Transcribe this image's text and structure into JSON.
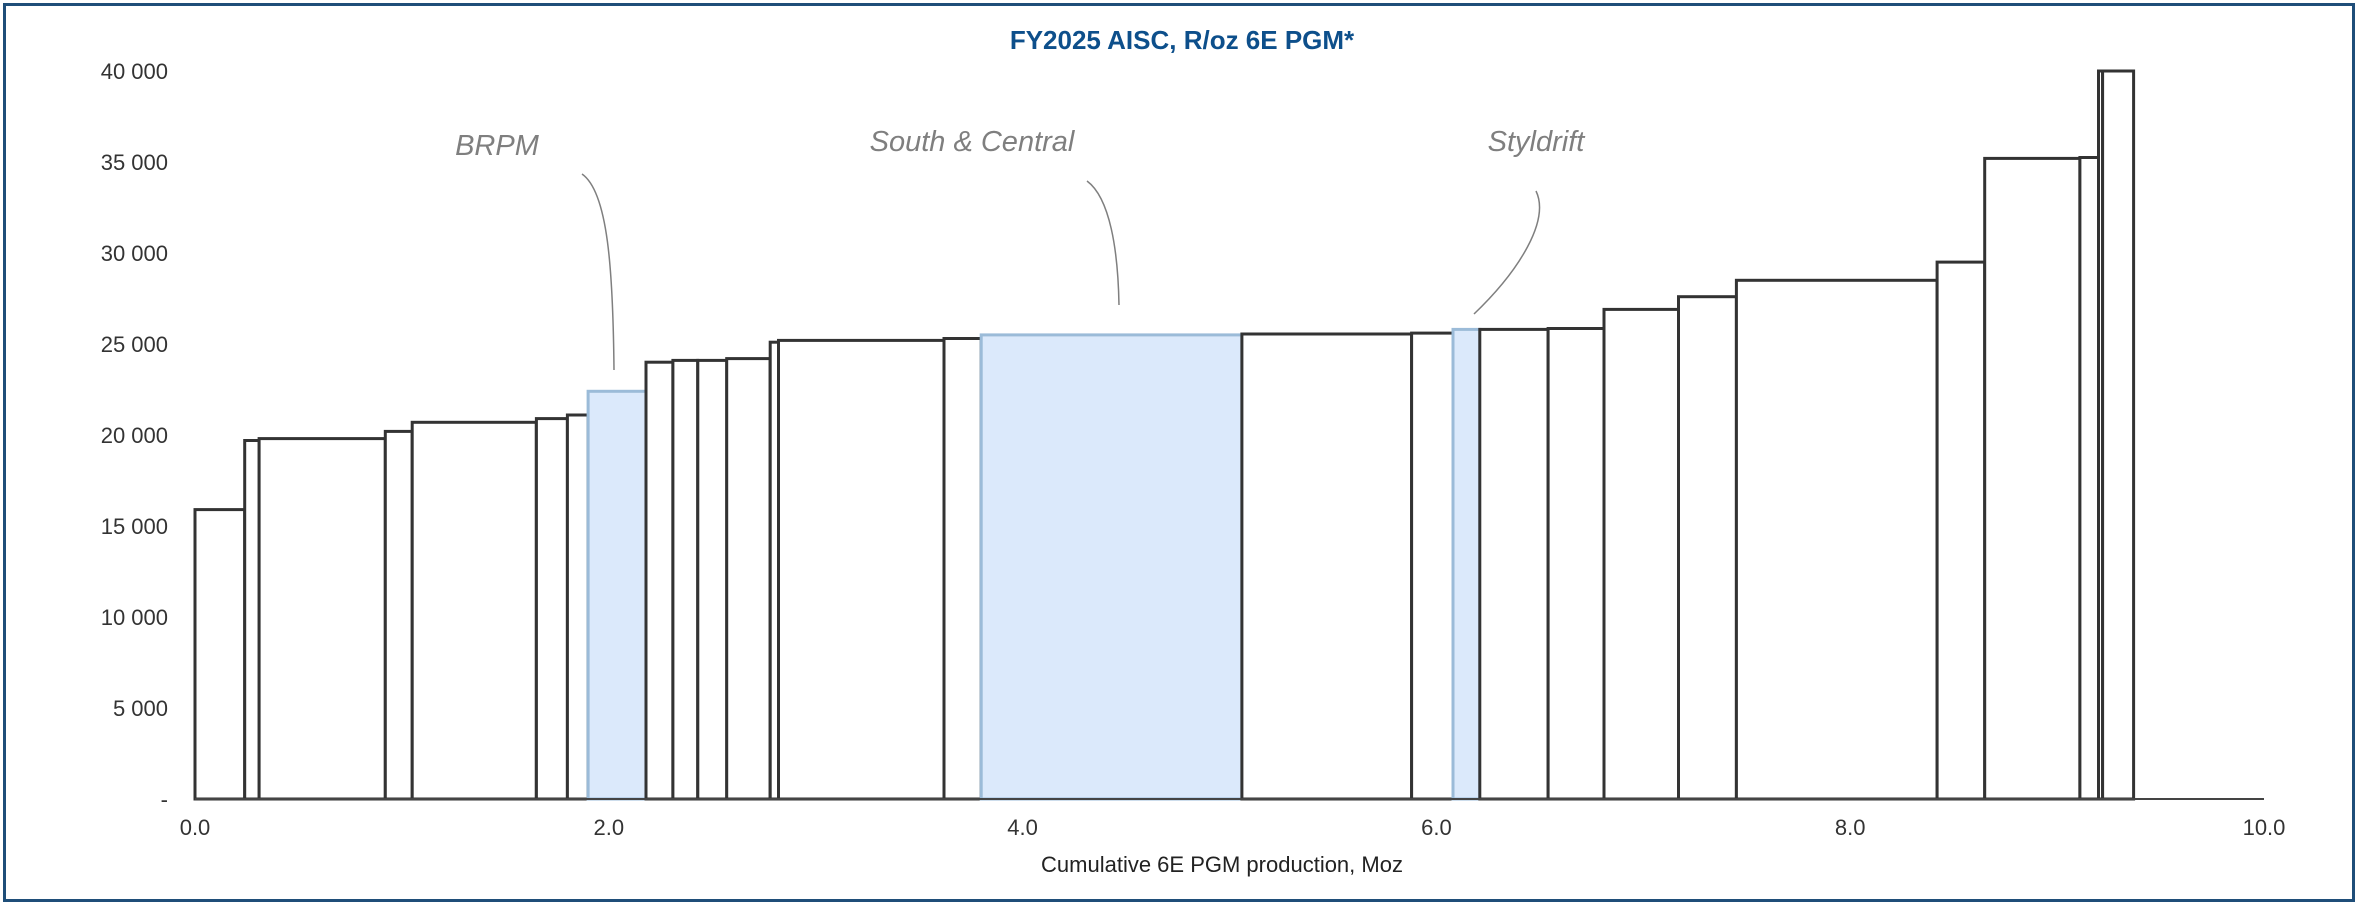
{
  "chart_data": {
    "type": "bar",
    "subtype": "cost-curve (variable-width bars)",
    "title": "FY2025 AISC, R/oz 6E PGM*",
    "xlabel": "Cumulative 6E PGM production, Moz",
    "ylabel": "",
    "xlim": [
      0,
      10
    ],
    "ylim": [
      0,
      40000
    ],
    "x_ticks": [
      "0.0",
      "2.0",
      "4.0",
      "6.0",
      "8.0",
      "10.0"
    ],
    "y_ticks": [
      "-",
      "5 000",
      "10 000",
      "15 000",
      "20 000",
      "25 000",
      "30 000",
      "35 000",
      "40 000"
    ],
    "grid": false,
    "legend": "none",
    "colors": {
      "bar_outline": "#333333",
      "highlight_fill": "#dbe9fb",
      "highlight_outline": "#9bbbd8",
      "title": "#0d4f8b",
      "frame": "#1f4e79"
    },
    "bars": [
      {
        "x_start": 0.0,
        "x_end": 0.24,
        "value": 15900,
        "highlight": false
      },
      {
        "x_start": 0.24,
        "x_end": 0.31,
        "value": 19700,
        "highlight": false
      },
      {
        "x_start": 0.31,
        "x_end": 0.92,
        "value": 19800,
        "highlight": false
      },
      {
        "x_start": 0.92,
        "x_end": 1.05,
        "value": 20200,
        "highlight": false
      },
      {
        "x_start": 1.05,
        "x_end": 1.65,
        "value": 20700,
        "highlight": false
      },
      {
        "x_start": 1.65,
        "x_end": 1.8,
        "value": 20900,
        "highlight": false
      },
      {
        "x_start": 1.8,
        "x_end": 1.9,
        "value": 21100,
        "highlight": false
      },
      {
        "x_start": 1.9,
        "x_end": 2.18,
        "value": 22400,
        "highlight": true,
        "label": "BRPM"
      },
      {
        "x_start": 2.18,
        "x_end": 2.31,
        "value": 24000,
        "highlight": false
      },
      {
        "x_start": 2.31,
        "x_end": 2.43,
        "value": 24100,
        "highlight": false
      },
      {
        "x_start": 2.43,
        "x_end": 2.57,
        "value": 24100,
        "highlight": false
      },
      {
        "x_start": 2.57,
        "x_end": 2.78,
        "value": 24200,
        "highlight": false
      },
      {
        "x_start": 2.78,
        "x_end": 2.82,
        "value": 25100,
        "highlight": false
      },
      {
        "x_start": 2.82,
        "x_end": 3.62,
        "value": 25200,
        "highlight": false
      },
      {
        "x_start": 3.62,
        "x_end": 3.8,
        "value": 25300,
        "highlight": false
      },
      {
        "x_start": 3.8,
        "x_end": 5.06,
        "value": 25500,
        "highlight": true,
        "label": "South & Central"
      },
      {
        "x_start": 5.06,
        "x_end": 5.88,
        "value": 25550,
        "highlight": false
      },
      {
        "x_start": 5.88,
        "x_end": 6.08,
        "value": 25600,
        "highlight": false
      },
      {
        "x_start": 6.08,
        "x_end": 6.21,
        "value": 25800,
        "highlight": true,
        "label": "Styldrift"
      },
      {
        "x_start": 6.21,
        "x_end": 6.54,
        "value": 25800,
        "highlight": false
      },
      {
        "x_start": 6.54,
        "x_end": 6.81,
        "value": 25850,
        "highlight": false
      },
      {
        "x_start": 6.81,
        "x_end": 7.17,
        "value": 26900,
        "highlight": false
      },
      {
        "x_start": 7.17,
        "x_end": 7.45,
        "value": 27600,
        "highlight": false
      },
      {
        "x_start": 7.45,
        "x_end": 8.42,
        "value": 28500,
        "highlight": false
      },
      {
        "x_start": 8.42,
        "x_end": 8.65,
        "value": 29500,
        "highlight": false
      },
      {
        "x_start": 8.65,
        "x_end": 9.11,
        "value": 35200,
        "highlight": false
      },
      {
        "x_start": 9.11,
        "x_end": 9.2,
        "value": 35250,
        "highlight": false
      },
      {
        "x_start": 9.2,
        "x_end": 9.22,
        "value": 40000,
        "highlight": false
      },
      {
        "x_start": 9.22,
        "x_end": 9.37,
        "value": 40000,
        "highlight": false
      }
    ],
    "annotations": [
      {
        "text": "BRPM",
        "bar_index": 7
      },
      {
        "text": "South & Central",
        "bar_index": 15
      },
      {
        "text": "Styldrift",
        "bar_index": 18
      }
    ]
  }
}
